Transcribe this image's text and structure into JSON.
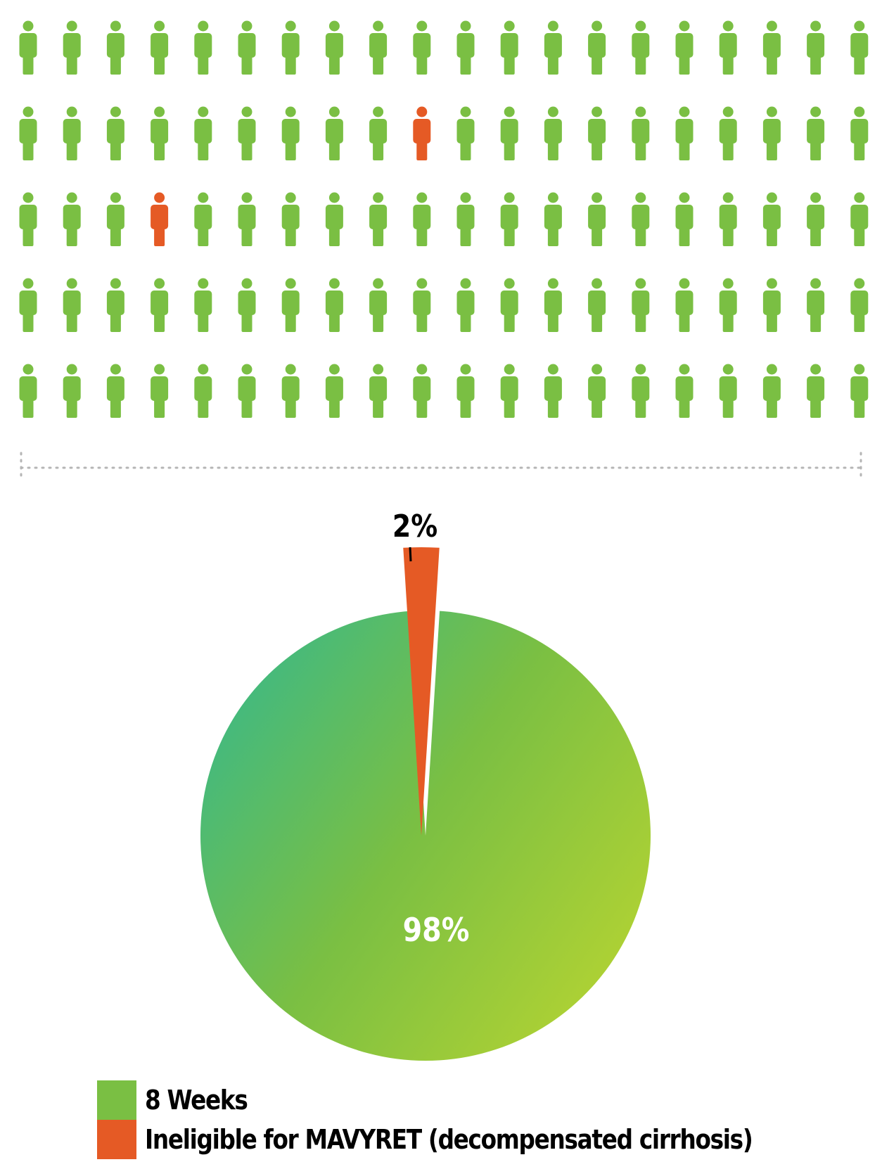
{
  "chart_data": [
    {
      "type": "pictogram",
      "rows": 5,
      "columns": 20,
      "total": 100,
      "highlighted": [
        {
          "row": 2,
          "column": 10,
          "series": "Ineligible for MAVYRET (decompensated cirrhosis)"
        },
        {
          "row": 3,
          "column": 4,
          "series": "Ineligible for MAVYRET (decompensated cirrhosis)"
        }
      ],
      "counts": {
        "8 Weeks": 98,
        "Ineligible for MAVYRET (decompensated cirrhosis)": 2
      }
    },
    {
      "type": "pie",
      "slices": [
        {
          "name": "8 Weeks",
          "value": 98,
          "label": "98%"
        },
        {
          "name": "Ineligible for MAVYRET (decompensated cirrhosis)",
          "value": 2,
          "label": "2%",
          "exploded": true
        }
      ],
      "legend_position": "bottom-left"
    }
  ],
  "legend": {
    "items": [
      {
        "label": "8 Weeks",
        "color": "#7abf43"
      },
      {
        "label": "Ineligible for MAVYRET (decompensated cirrhosis)",
        "color": "#e55a25"
      }
    ]
  },
  "colors": {
    "green": "#7abf43",
    "orange": "#e55a25",
    "gradient_start": "#3db985",
    "gradient_mid": "#7abf43",
    "gradient_end": "#b9d531",
    "divider": "#b5b5b5"
  }
}
